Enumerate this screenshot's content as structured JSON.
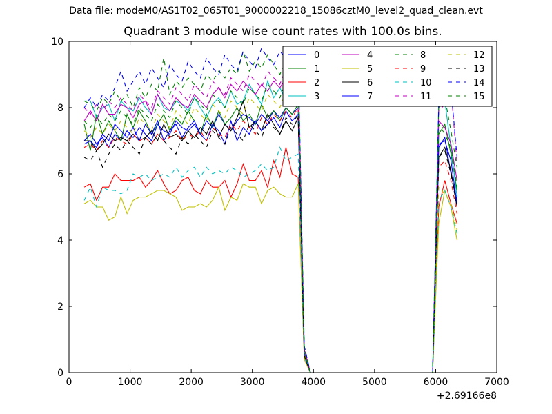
{
  "figure": {
    "suptitle": "Data file: modeM0/AS1T02_065T01_9000002218_15086cztM0_level2_quad_clean.evt"
  },
  "chart_data": {
    "type": "line",
    "title": "Quadrant 3 module wise count rates with 100.0s bins.",
    "xlabel": "",
    "ylabel": "",
    "xlim": [
      0,
      7000
    ],
    "ylim": [
      0,
      10
    ],
    "x_ticks": [
      0,
      1000,
      2000,
      3000,
      4000,
      5000,
      6000,
      7000
    ],
    "y_ticks": [
      0,
      2,
      4,
      6,
      8,
      10
    ],
    "x_offset_label": "+2.69166e8",
    "legend": {
      "placement": "top-right",
      "columns": 4
    },
    "grid": false,
    "x": [
      250,
      350,
      450,
      550,
      650,
      750,
      850,
      950,
      1050,
      1150,
      1250,
      1350,
      1450,
      1550,
      1650,
      1750,
      1850,
      1950,
      2050,
      2150,
      2250,
      2350,
      2450,
      2550,
      2650,
      2750,
      2850,
      2950,
      3050,
      3150,
      3250,
      3350,
      3450,
      3550,
      3650,
      3750,
      3850,
      3950,
      4050,
      4150,
      4250,
      4350,
      4450,
      4550,
      4650,
      4750,
      4850,
      4950,
      5050,
      5150,
      5250,
      5350,
      5450,
      5550,
      5650,
      5750,
      5850,
      5950,
      6050,
      6150,
      6250,
      6350
    ],
    "series": [
      {
        "name": "0",
        "color": "#0000ff",
        "dash": "solid",
        "values": [
          7.0,
          7.2,
          6.9,
          7.1,
          6.8,
          7.2,
          7.0,
          7.3,
          7.1,
          7.4,
          7.2,
          7.0,
          7.5,
          7.3,
          7.2,
          7.6,
          7.4,
          7.3,
          7.5,
          7.2,
          7.6,
          7.4,
          7.8,
          7.5,
          7.3,
          7.6,
          7.8,
          7.7,
          7.5,
          7.8,
          7.6,
          7.9,
          7.7,
          8.0,
          7.8,
          8.0,
          0.5,
          0.0,
          0,
          0,
          0,
          0,
          0,
          0,
          0,
          0,
          0,
          0,
          0,
          0,
          0,
          0,
          0,
          0,
          0,
          0,
          0,
          0.0,
          6.8,
          7.1,
          6.0,
          5.2
        ]
      },
      {
        "name": "1",
        "color": "#008000",
        "dash": "solid",
        "values": [
          7.5,
          6.7,
          7.8,
          7.2,
          7.6,
          7.3,
          7.0,
          7.8,
          7.4,
          7.9,
          7.6,
          7.2,
          7.5,
          7.8,
          7.3,
          7.7,
          7.5,
          7.9,
          7.6,
          7.2,
          7.8,
          7.4,
          7.9,
          7.5,
          7.7,
          8.0,
          7.6,
          7.8,
          7.5,
          8.1,
          7.7,
          7.9,
          7.6,
          8.0,
          7.8,
          8.1,
          0.6,
          0.0,
          0,
          0,
          0,
          0,
          0,
          0,
          0,
          0,
          0,
          0,
          0,
          0,
          0,
          0,
          0,
          0,
          0,
          0,
          0,
          0.0,
          7.2,
          7.5,
          6.6,
          5.5
        ]
      },
      {
        "name": "2",
        "color": "#ff0000",
        "dash": "solid",
        "values": [
          5.6,
          5.7,
          5.2,
          5.6,
          5.6,
          6.0,
          5.8,
          5.8,
          5.8,
          5.9,
          5.6,
          5.8,
          6.1,
          5.7,
          5.4,
          5.5,
          5.8,
          5.9,
          5.5,
          5.4,
          5.8,
          5.6,
          5.6,
          5.8,
          5.3,
          5.7,
          6.3,
          5.8,
          5.8,
          6.1,
          5.6,
          6.4,
          5.9,
          6.8,
          6.0,
          5.9,
          0.4,
          0.0,
          0,
          0,
          0,
          0,
          0,
          0,
          0,
          0,
          0,
          0,
          0,
          0,
          0,
          0,
          0,
          0,
          0,
          0,
          0,
          0.0,
          5.0,
          5.8,
          5.1,
          4.5
        ]
      },
      {
        "name": "3",
        "color": "#00bfbf",
        "dash": "solid",
        "values": [
          8.2,
          8.2,
          7.7,
          8.0,
          8.1,
          7.6,
          8.2,
          8.0,
          7.9,
          8.3,
          8.0,
          7.8,
          8.4,
          8.0,
          7.9,
          8.2,
          8.1,
          7.9,
          8.3,
          8.0,
          7.7,
          8.1,
          8.3,
          8.0,
          8.5,
          8.1,
          8.2,
          8.7,
          8.4,
          8.1,
          8.8,
          8.3,
          8.6,
          8.2,
          8.5,
          8.3,
          0.7,
          0.0,
          0,
          0,
          0,
          0,
          0,
          0,
          0,
          0,
          0,
          0,
          0,
          0,
          0,
          0,
          0,
          0,
          0,
          0,
          0,
          0.0,
          8.2,
          8.2,
          6.8,
          5.3
        ]
      },
      {
        "name": "4",
        "color": "#bf00bf",
        "dash": "solid",
        "values": [
          7.6,
          7.9,
          7.6,
          8.1,
          7.8,
          7.8,
          8.1,
          8.0,
          7.7,
          8.1,
          8.2,
          7.8,
          8.4,
          8.1,
          7.9,
          8.3,
          8.1,
          8.0,
          8.4,
          8.2,
          8.0,
          8.4,
          8.6,
          8.3,
          8.7,
          8.5,
          8.8,
          8.6,
          8.4,
          8.7,
          8.5,
          8.8,
          8.6,
          8.9,
          8.7,
          8.8,
          0.7,
          0.0,
          0,
          0,
          0,
          0,
          0,
          0,
          0,
          0,
          0,
          0,
          0,
          0,
          0,
          0,
          0,
          0,
          0,
          0,
          0,
          0.0,
          7.6,
          7.4,
          6.9,
          5.8
        ]
      },
      {
        "name": "5",
        "color": "#bfbf00",
        "dash": "solid",
        "values": [
          5.1,
          5.2,
          5.0,
          5.0,
          4.6,
          4.7,
          5.3,
          4.8,
          5.2,
          5.3,
          5.3,
          5.4,
          5.5,
          5.5,
          5.4,
          5.3,
          4.9,
          5.0,
          5.0,
          5.1,
          5.0,
          5.2,
          5.6,
          4.9,
          5.3,
          5.2,
          5.7,
          5.6,
          5.6,
          5.1,
          5.5,
          5.6,
          5.4,
          5.3,
          5.3,
          5.7,
          0.4,
          0.0,
          0,
          0,
          0,
          0,
          0,
          0,
          0,
          0,
          0,
          0,
          0,
          0,
          0,
          0,
          0,
          0,
          0,
          0,
          0,
          0.0,
          4.5,
          5.5,
          5.0,
          4.0
        ]
      },
      {
        "name": "6",
        "color": "#000000",
        "dash": "solid",
        "values": [
          7.0,
          7.0,
          6.7,
          6.9,
          7.2,
          7.0,
          7.1,
          7.0,
          7.2,
          7.0,
          7.1,
          7.3,
          7.0,
          7.5,
          7.1,
          7.2,
          7.0,
          7.3,
          7.1,
          7.4,
          7.2,
          7.6,
          7.1,
          7.5,
          7.3,
          7.7,
          8.2,
          7.4,
          7.6,
          7.3,
          7.8,
          7.5,
          7.2,
          7.6,
          7.3,
          7.7,
          0.5,
          0.0,
          0,
          0,
          0,
          0,
          0,
          0,
          0,
          0,
          0,
          0,
          0,
          0,
          0,
          0,
          0,
          0,
          0,
          0,
          0,
          0.0,
          6.5,
          6.8,
          6.1,
          5.0
        ]
      },
      {
        "name": "7",
        "color": "#0000ff",
        "dash": "solid",
        "values": [
          6.9,
          7.0,
          6.8,
          7.2,
          7.0,
          7.5,
          7.3,
          7.1,
          7.4,
          7.0,
          7.5,
          7.2,
          7.6,
          7.0,
          7.3,
          7.5,
          7.1,
          7.4,
          7.6,
          7.2,
          7.0,
          7.5,
          7.3,
          6.9,
          7.6,
          7.0,
          7.4,
          7.2,
          7.6,
          7.3,
          7.5,
          7.7,
          7.4,
          7.9,
          7.6,
          7.8,
          0.5,
          0.0,
          0,
          0,
          0,
          0,
          0,
          0,
          0,
          0,
          0,
          0,
          0,
          0,
          0,
          0,
          0,
          0,
          0,
          0,
          0,
          0.0,
          6.9,
          7.0,
          6.4,
          5.1
        ]
      },
      {
        "name": "8",
        "color": "#008000",
        "dash": "dashed",
        "values": [
          8.2,
          8.1,
          7.9,
          8.3,
          8.1,
          8.5,
          8.2,
          8.4,
          8.0,
          8.6,
          8.3,
          8.7,
          8.5,
          9.5,
          8.4,
          8.8,
          8.6,
          8.9,
          8.7,
          8.5,
          9.0,
          8.8,
          9.1,
          8.9,
          9.2,
          9.0,
          9.7,
          9.1,
          9.4,
          9.2,
          9.6,
          9.3,
          9.0,
          9.4,
          9.2,
          9.5,
          0.8,
          0.0,
          0,
          0,
          0,
          0,
          0,
          0,
          0,
          0,
          0,
          0,
          0,
          0,
          0,
          0,
          0,
          0,
          0,
          0,
          0,
          0.0,
          8.0,
          8.3,
          7.3,
          6.2
        ]
      },
      {
        "name": "9",
        "color": "#ff0000",
        "dash": "dashed",
        "values": [
          6.8,
          6.9,
          6.7,
          7.0,
          6.8,
          7.1,
          7.0,
          6.9,
          7.2,
          7.0,
          7.1,
          6.9,
          7.2,
          7.0,
          7.1,
          7.3,
          7.0,
          7.2,
          7.1,
          7.3,
          7.0,
          7.4,
          7.2,
          7.1,
          7.5,
          7.3,
          7.6,
          7.4,
          7.2,
          7.7,
          7.5,
          7.8,
          7.6,
          7.9,
          7.7,
          8.0,
          0.5,
          0.0,
          0,
          0,
          0,
          0,
          0,
          0,
          0,
          0,
          0,
          0,
          0,
          0,
          0,
          0,
          0,
          0,
          0,
          0,
          0,
          0.0,
          6.2,
          6.4,
          5.8,
          4.8
        ]
      },
      {
        "name": "10",
        "color": "#00bfbf",
        "dash": "dashed",
        "values": [
          5.2,
          5.6,
          5.0,
          5.6,
          5.5,
          5.5,
          5.4,
          5.5,
          6.0,
          5.9,
          6.0,
          5.8,
          5.9,
          6.0,
          5.9,
          6.2,
          5.9,
          6.1,
          6.2,
          5.9,
          6.2,
          6.0,
          6.1,
          6.0,
          6.2,
          6.1,
          5.9,
          6.0,
          6.1,
          6.3,
          6.1,
          6.2,
          6.8,
          6.4,
          6.5,
          6.6,
          0.5,
          0.0,
          0,
          0,
          0,
          0,
          0,
          0,
          0,
          0,
          0,
          0,
          0,
          0,
          0,
          0,
          0,
          0,
          0,
          0,
          0,
          0.0,
          5.2,
          5.5,
          5.0,
          4.2
        ]
      },
      {
        "name": "11",
        "color": "#bf00bf",
        "dash": "dashed",
        "values": [
          8.0,
          7.8,
          8.1,
          7.9,
          8.2,
          8.0,
          8.3,
          8.1,
          7.9,
          8.4,
          8.2,
          8.0,
          8.5,
          8.3,
          8.1,
          8.6,
          8.4,
          8.2,
          8.7,
          8.5,
          8.3,
          8.8,
          8.6,
          8.4,
          8.9,
          8.7,
          8.5,
          9.0,
          8.8,
          8.6,
          9.1,
          8.9,
          8.7,
          9.2,
          9.0,
          9.3,
          0.7,
          0.0,
          0,
          0,
          0,
          0,
          0,
          0,
          0,
          0,
          0,
          0,
          0,
          0,
          0,
          0,
          0,
          0,
          0,
          0,
          0,
          0.0,
          7.9,
          8.1,
          8.6,
          6.3
        ]
      },
      {
        "name": "12",
        "color": "#bfbf00",
        "dash": "dashed",
        "values": [
          7.3,
          7.1,
          7.4,
          7.2,
          7.5,
          7.3,
          7.6,
          7.4,
          7.2,
          7.7,
          7.5,
          7.3,
          7.8,
          7.6,
          7.4,
          7.9,
          7.7,
          7.5,
          8.0,
          7.8,
          7.6,
          8.1,
          7.9,
          7.7,
          8.2,
          8.0,
          7.8,
          8.3,
          8.1,
          7.9,
          8.4,
          8.2,
          8.0,
          8.5,
          8.3,
          8.6,
          0.6,
          0.0,
          0,
          0,
          0,
          0,
          0,
          0,
          0,
          0,
          0,
          0,
          0,
          0,
          0,
          0,
          0,
          0,
          0,
          0,
          0,
          0.0,
          5.6,
          5.4,
          5.1,
          4.3
        ]
      },
      {
        "name": "13",
        "color": "#000000",
        "dash": "dashed",
        "values": [
          6.5,
          6.4,
          6.7,
          6.2,
          6.6,
          6.9,
          6.7,
          7.0,
          6.8,
          6.6,
          7.1,
          6.9,
          7.2,
          7.0,
          6.8,
          6.6,
          7.1,
          6.9,
          7.2,
          7.0,
          6.8,
          7.3,
          7.1,
          6.9,
          7.4,
          7.2,
          7.0,
          7.5,
          7.3,
          7.1,
          7.6,
          7.4,
          7.2,
          7.7,
          7.5,
          7.8,
          0.5,
          0.0,
          0,
          0,
          0,
          0,
          0,
          0,
          0,
          0,
          0,
          0,
          0,
          0,
          0,
          0,
          0,
          0,
          0,
          0,
          0,
          0.0,
          6.5,
          6.7,
          6.0,
          5.0
        ]
      },
      {
        "name": "14",
        "color": "#0000ff",
        "dash": "dashed",
        "values": [
          8.0,
          8.3,
          8.0,
          8.4,
          8.2,
          8.6,
          9.1,
          8.5,
          8.8,
          9.1,
          8.7,
          9.2,
          8.9,
          8.6,
          9.3,
          9.0,
          8.8,
          9.4,
          9.1,
          8.9,
          9.5,
          9.2,
          9.0,
          9.6,
          9.3,
          9.1,
          9.7,
          9.4,
          9.2,
          9.8,
          9.5,
          9.3,
          9.7,
          9.5,
          9.4,
          9.6,
          0.8,
          0.0,
          0,
          0,
          0,
          0,
          0,
          0,
          0,
          0,
          0,
          0,
          0,
          0,
          0,
          0,
          0,
          0,
          0,
          0,
          0,
          0.0,
          8.1,
          8.3,
          8.6,
          6.5
        ]
      },
      {
        "name": "15",
        "color": "#008000",
        "dash": "dashed",
        "values": [
          7.6,
          7.4,
          7.7,
          7.5,
          7.8,
          7.6,
          7.9,
          7.7,
          7.5,
          8.0,
          7.8,
          7.6,
          8.1,
          7.9,
          7.7,
          8.2,
          8.0,
          7.8,
          8.3,
          8.1,
          7.9,
          8.4,
          8.2,
          8.0,
          8.5,
          8.3,
          8.1,
          8.6,
          8.4,
          8.2,
          8.7,
          8.5,
          8.3,
          8.8,
          8.6,
          8.9,
          0.6,
          0.0,
          0,
          0,
          0,
          0,
          0,
          0,
          0,
          0,
          0,
          0,
          0,
          0,
          0,
          0,
          0,
          0,
          0,
          0,
          0,
          0.0,
          7.5,
          7.2,
          6.8,
          5.6
        ]
      }
    ]
  }
}
